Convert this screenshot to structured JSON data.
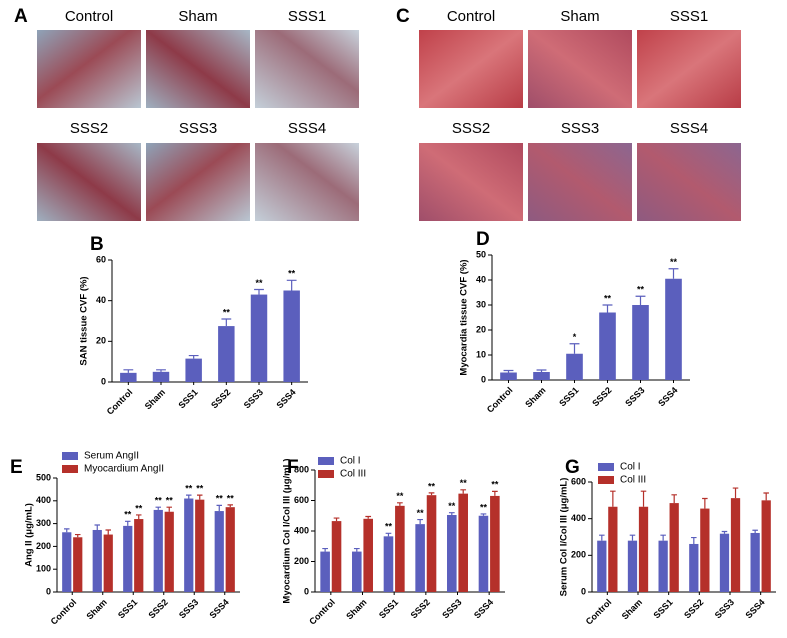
{
  "image_panels": [
    {
      "label": "A",
      "captions": [
        "Control",
        "Sham",
        "SSS1",
        "SSS2",
        "SSS3",
        "SSS4"
      ]
    },
    {
      "label": "C",
      "captions": [
        "Control",
        "Sham",
        "SSS1",
        "SSS2",
        "SSS3",
        "SSS4"
      ]
    }
  ],
  "chart_data": [
    {
      "type": "bar",
      "label": "B",
      "ylabel": "SAN tissue CVF (%)",
      "categories": [
        "Control",
        "Sham",
        "SSS1",
        "SSS2",
        "SSS3",
        "SSS4"
      ],
      "series": [
        {
          "color": "#5b5fbd",
          "values": [
            4.5,
            5,
            11.5,
            27.5,
            43,
            45
          ],
          "errors": [
            1.5,
            1,
            1.5,
            3.5,
            2.5,
            5
          ],
          "annotations": [
            null,
            null,
            null,
            "**",
            "**",
            "**"
          ]
        }
      ],
      "ylim": [
        0,
        60
      ],
      "yticks": [
        0,
        20,
        40,
        60
      ]
    },
    {
      "type": "bar",
      "label": "D",
      "ylabel": "Myocardia tissue CVF (%)",
      "categories": [
        "Control",
        "Sham",
        "SSS1",
        "SSS2",
        "SSS3",
        "SSS4"
      ],
      "series": [
        {
          "color": "#5b5fbd",
          "values": [
            3,
            3.2,
            10.5,
            27,
            30,
            40.5
          ],
          "errors": [
            0.8,
            0.8,
            4,
            3,
            3.5,
            4
          ],
          "annotations": [
            null,
            null,
            "*",
            "**",
            "**",
            "**"
          ]
        }
      ],
      "ylim": [
        0,
        50
      ],
      "yticks": [
        0,
        10,
        20,
        30,
        40,
        50
      ]
    },
    {
      "type": "bar",
      "label": "E",
      "ylabel": "Ang II (μg/mL)",
      "categories": [
        "Control",
        "Sham",
        "SSS1",
        "SSS2",
        "SSS3",
        "SSS4"
      ],
      "series": [
        {
          "name": "Serum AngII",
          "color": "#5b5fbd",
          "values": [
            262,
            272,
            290,
            360,
            410,
            355
          ],
          "errors": [
            15,
            22,
            20,
            12,
            15,
            25
          ],
          "annotations": [
            null,
            null,
            "**",
            "**",
            "**",
            "**"
          ]
        },
        {
          "name": "Myocardium AngII",
          "color": "#b5302a",
          "values": [
            240,
            252,
            320,
            352,
            405,
            372
          ],
          "errors": [
            12,
            20,
            18,
            20,
            20,
            10
          ],
          "annotations": [
            null,
            null,
            "**",
            "**",
            "**",
            "**"
          ]
        }
      ],
      "ylim": [
        0,
        500
      ],
      "yticks": [
        0,
        100,
        200,
        300,
        400,
        500
      ]
    },
    {
      "type": "bar",
      "label": "F",
      "ylabel": "Myocardium Col I/Col III (μg/mL)",
      "categories": [
        "Control",
        "Sham",
        "SSS1",
        "SSS2",
        "SSS3",
        "SSS4"
      ],
      "series": [
        {
          "name": "Col I",
          "color": "#5b5fbd",
          "values": [
            265,
            265,
            365,
            445,
            505,
            500
          ],
          "errors": [
            20,
            20,
            20,
            30,
            15,
            12
          ],
          "annotations": [
            null,
            null,
            "**",
            "**",
            "**",
            "**"
          ]
        },
        {
          "name": "Col III",
          "color": "#b5302a",
          "values": [
            465,
            480,
            565,
            635,
            645,
            630
          ],
          "errors": [
            20,
            15,
            20,
            15,
            25,
            30
          ],
          "annotations": [
            null,
            null,
            "**",
            "**",
            "**",
            "**"
          ]
        }
      ],
      "ylim": [
        0,
        800
      ],
      "yticks": [
        0,
        200,
        400,
        600,
        800
      ]
    },
    {
      "type": "bar",
      "label": "G",
      "ylabel": "Serum Col I/Col III (μg/mL)",
      "categories": [
        "Control",
        "Sham",
        "SSS1",
        "SSS2",
        "SSS3",
        "SSS4"
      ],
      "series": [
        {
          "name": "Col I",
          "color": "#5b5fbd",
          "values": [
            280,
            280,
            280,
            262,
            318,
            322
          ],
          "errors": [
            30,
            30,
            30,
            35,
            12,
            15
          ]
        },
        {
          "name": "Col III",
          "color": "#b5302a",
          "values": [
            465,
            465,
            485,
            455,
            512,
            500
          ],
          "errors": [
            85,
            85,
            45,
            55,
            55,
            40
          ]
        }
      ],
      "ylim": [
        0,
        600
      ],
      "yticks": [
        0,
        200,
        400,
        600
      ]
    }
  ]
}
